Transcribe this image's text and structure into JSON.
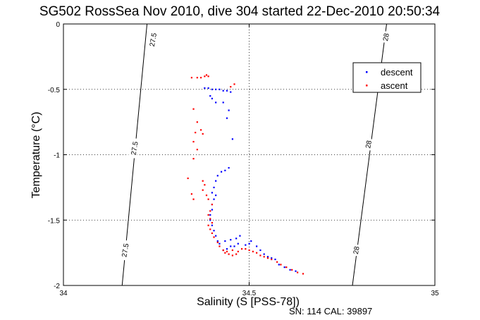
{
  "chart_data": {
    "type": "scatter",
    "title": "SG502 RossSea Nov 2010, dive 304 started 22-Dec-2010 20:50:34",
    "xlabel": "Salinity (S [PSS-78])",
    "ylabel": "Temperature (°C)",
    "xlim": [
      34,
      35
    ],
    "ylim": [
      -2,
      0
    ],
    "xticks": [
      34,
      34.5,
      35
    ],
    "xtick_labels": [
      "34",
      "34.5",
      "35"
    ],
    "yticks": [
      0,
      -0.5,
      -1,
      -1.5,
      -2
    ],
    "ytick_labels": [
      "0",
      "-0.5",
      "-1",
      "-1.5",
      "-2"
    ],
    "grid": true,
    "legend_position": "top-right",
    "footer": "SN: 114  CAL: 39897",
    "isopycnals": [
      {
        "label": "27.5",
        "points": [
          [
            34.225,
            0
          ],
          [
            34.158,
            -2
          ]
        ]
      },
      {
        "label": "28",
        "points": [
          [
            34.87,
            0
          ],
          [
            34.778,
            -2
          ]
        ]
      }
    ],
    "isopycnal_labels": [
      {
        "text": "27.5",
        "x": 34.24,
        "y": -0.12
      },
      {
        "text": "27.5",
        "x": 34.19,
        "y": -0.95
      },
      {
        "text": "27.5",
        "x": 34.165,
        "y": -1.73
      },
      {
        "text": "28",
        "x": 34.867,
        "y": -0.1
      },
      {
        "text": "28",
        "x": 34.82,
        "y": -0.92
      },
      {
        "text": "28",
        "x": 34.787,
        "y": -1.73
      }
    ],
    "series": [
      {
        "name": "descent",
        "color": "#0000ff",
        "points": [
          [
            34.38,
            -0.49
          ],
          [
            34.39,
            -0.49
          ],
          [
            34.4,
            -0.5
          ],
          [
            34.41,
            -0.5
          ],
          [
            34.42,
            -0.5
          ],
          [
            34.43,
            -0.51
          ],
          [
            34.44,
            -0.51
          ],
          [
            34.45,
            -0.52
          ],
          [
            34.395,
            -0.55
          ],
          [
            34.4,
            -0.57
          ],
          [
            34.41,
            -0.6
          ],
          [
            34.43,
            -0.6
          ],
          [
            34.445,
            -0.66
          ],
          [
            34.44,
            -0.72
          ],
          [
            34.455,
            -0.88
          ],
          [
            34.445,
            -1.1
          ],
          [
            34.435,
            -1.12
          ],
          [
            34.425,
            -1.13
          ],
          [
            34.415,
            -1.16
          ],
          [
            34.41,
            -1.2
          ],
          [
            34.405,
            -1.25
          ],
          [
            34.4,
            -1.29
          ],
          [
            34.41,
            -1.31
          ],
          [
            34.405,
            -1.34
          ],
          [
            34.4,
            -1.38
          ],
          [
            34.4,
            -1.42
          ],
          [
            34.395,
            -1.46
          ],
          [
            34.395,
            -1.5
          ],
          [
            34.4,
            -1.54
          ],
          [
            34.405,
            -1.58
          ],
          [
            34.41,
            -1.62
          ],
          [
            34.415,
            -1.66
          ],
          [
            34.42,
            -1.68
          ],
          [
            34.435,
            -1.66
          ],
          [
            34.45,
            -1.65
          ],
          [
            34.465,
            -1.64
          ],
          [
            34.475,
            -1.62
          ],
          [
            34.43,
            -1.73
          ],
          [
            34.44,
            -1.72
          ],
          [
            34.45,
            -1.7
          ],
          [
            34.46,
            -1.7
          ],
          [
            34.47,
            -1.68
          ],
          [
            34.49,
            -1.69
          ],
          [
            34.5,
            -1.68
          ],
          [
            34.505,
            -1.66
          ],
          [
            34.52,
            -1.7
          ],
          [
            34.53,
            -1.73
          ],
          [
            34.54,
            -1.76
          ],
          [
            34.55,
            -1.78
          ],
          [
            34.56,
            -1.79
          ],
          [
            34.57,
            -1.8
          ],
          [
            34.58,
            -1.84
          ],
          [
            34.595,
            -1.86
          ],
          [
            34.61,
            -1.88
          ],
          [
            34.625,
            -1.89
          ]
        ]
      },
      {
        "name": "ascent",
        "color": "#ff0000",
        "points": [
          [
            34.36,
            -0.41
          ],
          [
            34.37,
            -0.41
          ],
          [
            34.38,
            -0.4
          ],
          [
            34.385,
            -0.39
          ],
          [
            34.39,
            -0.4
          ],
          [
            34.345,
            -0.41
          ],
          [
            34.46,
            -0.46
          ],
          [
            34.45,
            -0.48
          ],
          [
            34.35,
            -0.65
          ],
          [
            34.36,
            -0.75
          ],
          [
            34.37,
            -0.81
          ],
          [
            34.355,
            -0.83
          ],
          [
            34.35,
            -0.9
          ],
          [
            34.36,
            -0.96
          ],
          [
            34.35,
            -1.03
          ],
          [
            34.375,
            -0.84
          ],
          [
            34.375,
            -1.2
          ],
          [
            34.38,
            -1.23
          ],
          [
            34.375,
            -1.27
          ],
          [
            34.385,
            -1.31
          ],
          [
            34.39,
            -1.34
          ],
          [
            34.4,
            -1.38
          ],
          [
            34.395,
            -1.43
          ],
          [
            34.39,
            -1.46
          ],
          [
            34.395,
            -1.49
          ],
          [
            34.4,
            -1.52
          ],
          [
            34.39,
            -1.54
          ],
          [
            34.395,
            -1.57
          ],
          [
            34.4,
            -1.6
          ],
          [
            34.405,
            -1.63
          ],
          [
            34.415,
            -1.67
          ],
          [
            34.42,
            -1.7
          ],
          [
            34.43,
            -1.73
          ],
          [
            34.435,
            -1.75
          ],
          [
            34.445,
            -1.76
          ],
          [
            34.455,
            -1.77
          ],
          [
            34.465,
            -1.76
          ],
          [
            34.47,
            -1.74
          ],
          [
            34.48,
            -1.72
          ],
          [
            34.49,
            -1.72
          ],
          [
            34.5,
            -1.73
          ],
          [
            34.51,
            -1.74
          ],
          [
            34.52,
            -1.75
          ],
          [
            34.53,
            -1.77
          ],
          [
            34.54,
            -1.78
          ],
          [
            34.55,
            -1.79
          ],
          [
            34.56,
            -1.8
          ],
          [
            34.575,
            -1.82
          ],
          [
            34.585,
            -1.84
          ],
          [
            34.6,
            -1.86
          ],
          [
            34.615,
            -1.88
          ],
          [
            34.63,
            -1.9
          ],
          [
            34.645,
            -1.91
          ],
          [
            34.44,
            -1.74
          ],
          [
            34.455,
            -1.73
          ],
          [
            34.335,
            -1.18
          ],
          [
            34.345,
            -1.3
          ],
          [
            34.35,
            -1.34
          ]
        ]
      }
    ]
  }
}
